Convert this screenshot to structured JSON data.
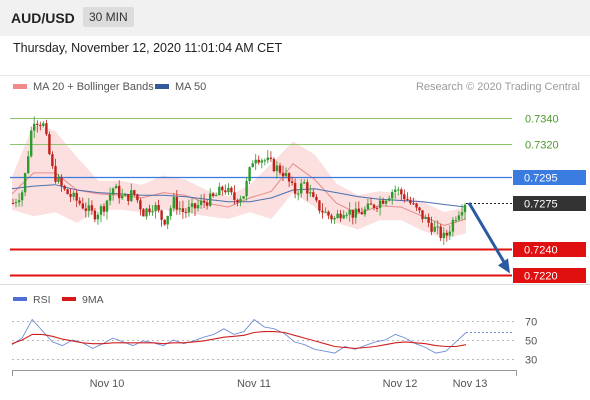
{
  "header": {
    "pair": "AUD/USD",
    "timeframe": "30 MIN"
  },
  "date_line": "Thursday, November 12, 2020 11:01:04 AM CET",
  "legend": {
    "ma20_bb": "MA 20 + Bollinger Bands",
    "ma50": "MA 50",
    "credit": "Research © 2020 Trading Central"
  },
  "rsi_legend": {
    "rsi": "RSI",
    "ma": "9MA"
  },
  "colors": {
    "bull": "#2e9b2e",
    "bear": "#c0201a",
    "bollinger": "#fcd9d9",
    "ma20": "#e88a8a",
    "ma50": "#4b6fb0",
    "support": "#e11010",
    "resistance": "#8fc56a",
    "pivot": "#3a7be0",
    "current": "#333333",
    "arrow": "#2a5aa0",
    "rsi": "#6f8fd8",
    "rsi_ma": "#d02020"
  },
  "chart_data": [
    {
      "type": "candlestick",
      "title": "AUD/USD",
      "timeframe": "30 MIN",
      "x_ticks": [
        "Nov 10",
        "Nov 11",
        "Nov 12",
        "Nov 13"
      ],
      "ylim": [
        0.7215,
        0.7355
      ],
      "levels": [
        {
          "label": "0.7340",
          "value": 0.734,
          "kind": "resistance"
        },
        {
          "label": "0.7320",
          "value": 0.732,
          "kind": "resistance"
        },
        {
          "label": "0.7295",
          "value": 0.7295,
          "kind": "pivot"
        },
        {
          "label": "0.7275",
          "value": 0.7275,
          "kind": "current"
        },
        {
          "label": "0.7240",
          "value": 0.724,
          "kind": "support"
        },
        {
          "label": "0.7220",
          "value": 0.722,
          "kind": "support"
        }
      ],
      "series": [
        {
          "name": "MA 20 + Bollinger Bands",
          "mid": [
            0.7282,
            0.7298,
            0.7298,
            0.7285,
            0.7282,
            0.7281,
            0.7279,
            0.7283,
            0.7281,
            0.7275,
            0.7272,
            0.7279,
            0.7284,
            0.7305,
            0.7293,
            0.7275,
            0.7267,
            0.7273,
            0.7272,
            0.7265,
            0.7258,
            0.7263
          ],
          "upper": [
            0.7295,
            0.7335,
            0.733,
            0.731,
            0.7292,
            0.7292,
            0.7289,
            0.7296,
            0.7293,
            0.7285,
            0.728,
            0.7289,
            0.7305,
            0.7322,
            0.7312,
            0.729,
            0.7281,
            0.7284,
            0.7282,
            0.7276,
            0.7268,
            0.7272
          ],
          "lower": [
            0.727,
            0.7265,
            0.7268,
            0.726,
            0.727,
            0.727,
            0.7268,
            0.727,
            0.7268,
            0.7265,
            0.7263,
            0.7268,
            0.7263,
            0.7283,
            0.7272,
            0.726,
            0.7255,
            0.7262,
            0.7262,
            0.7254,
            0.7248,
            0.7252
          ]
        },
        {
          "name": "MA 50",
          "values": [
            0.7286,
            0.7288,
            0.7289,
            0.7285,
            0.7283,
            0.7282,
            0.7281,
            0.7281,
            0.728,
            0.7278,
            0.7276,
            0.7276,
            0.7279,
            0.7285,
            0.7286,
            0.7283,
            0.728,
            0.7278,
            0.7277,
            0.7276,
            0.7274,
            0.7272
          ]
        },
        {
          "name": "Price",
          "values": [
            0.7275,
            0.7285,
            0.734,
            0.7335,
            0.7298,
            0.7285,
            0.7279,
            0.7273,
            0.7266,
            0.7272,
            0.7287,
            0.7278,
            0.7283,
            0.7268,
            0.7274,
            0.7261,
            0.7276,
            0.7268,
            0.7271,
            0.7276,
            0.7279,
            0.7287,
            0.7278,
            0.7282,
            0.7312,
            0.7308,
            0.7303,
            0.7298,
            0.7283,
            0.729,
            0.7275,
            0.7268,
            0.7263,
            0.7271,
            0.7266,
            0.7269,
            0.7274,
            0.7279,
            0.7286,
            0.728,
            0.7271,
            0.7263,
            0.7255,
            0.7248,
            0.7265,
            0.7276
          ]
        }
      ]
    },
    {
      "type": "line",
      "title": "RSI",
      "ylim": [
        20,
        80
      ],
      "y_ticks": [
        70,
        50,
        30
      ],
      "series": [
        {
          "name": "RSI",
          "values": [
            45,
            52,
            72,
            60,
            48,
            44,
            50,
            47,
            41,
            46,
            52,
            48,
            44,
            49,
            47,
            44,
            50,
            46,
            49,
            53,
            56,
            62,
            56,
            59,
            72,
            64,
            62,
            57,
            48,
            45,
            40,
            38,
            36,
            43,
            40,
            44,
            48,
            50,
            56,
            52,
            46,
            42,
            36,
            38,
            48,
            58
          ]
        },
        {
          "name": "9MA",
          "values": [
            46,
            50,
            56,
            56,
            54,
            51,
            49,
            47,
            46,
            46,
            47,
            47,
            47,
            47,
            47,
            46,
            47,
            47,
            48,
            49,
            51,
            53,
            54,
            55,
            58,
            59,
            59,
            58,
            55,
            52,
            49,
            46,
            43,
            42,
            41,
            42,
            43,
            45,
            47,
            48,
            47,
            46,
            44,
            43,
            43,
            45
          ]
        }
      ]
    }
  ]
}
